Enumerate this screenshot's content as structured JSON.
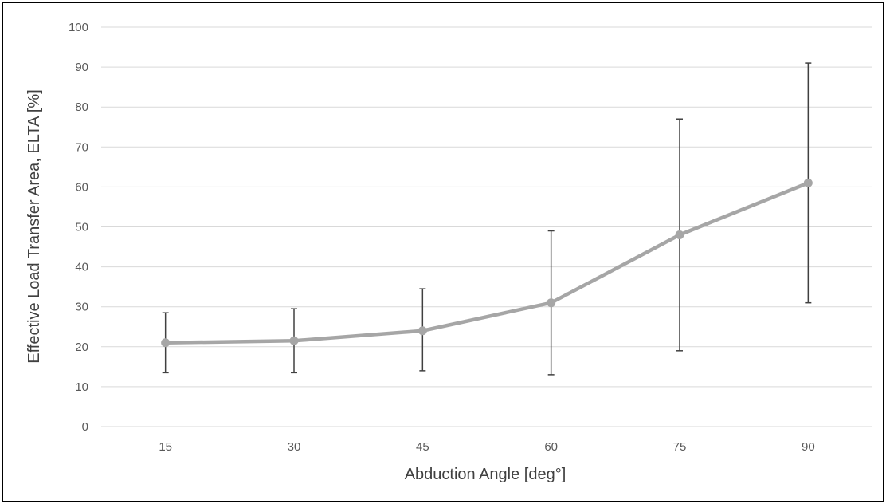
{
  "chart_data": {
    "type": "line",
    "title": "",
    "xlabel": "Abduction Angle [deg°]",
    "ylabel": "Effective Load Transfer Area, ELTA [%]",
    "categories": [
      "15",
      "30",
      "45",
      "60",
      "75",
      "90"
    ],
    "ylim": [
      0,
      100
    ],
    "yticks": [
      0,
      10,
      20,
      30,
      40,
      50,
      60,
      70,
      80,
      90,
      100
    ],
    "grid": true,
    "legend": "none",
    "series": [
      {
        "values": [
          21,
          21.5,
          24,
          31,
          48,
          61
        ],
        "error_low": [
          13.5,
          13.5,
          14,
          13,
          19,
          31
        ],
        "error_high": [
          28.5,
          29.5,
          34.5,
          49,
          77,
          91
        ]
      }
    ],
    "colors": {
      "line": "#a6a6a6",
      "marker": "#a6a6a6",
      "error_bar": "#404040",
      "grid": "#d9d9d9",
      "tick_text": "#595959",
      "axis_title": "#404040"
    }
  }
}
